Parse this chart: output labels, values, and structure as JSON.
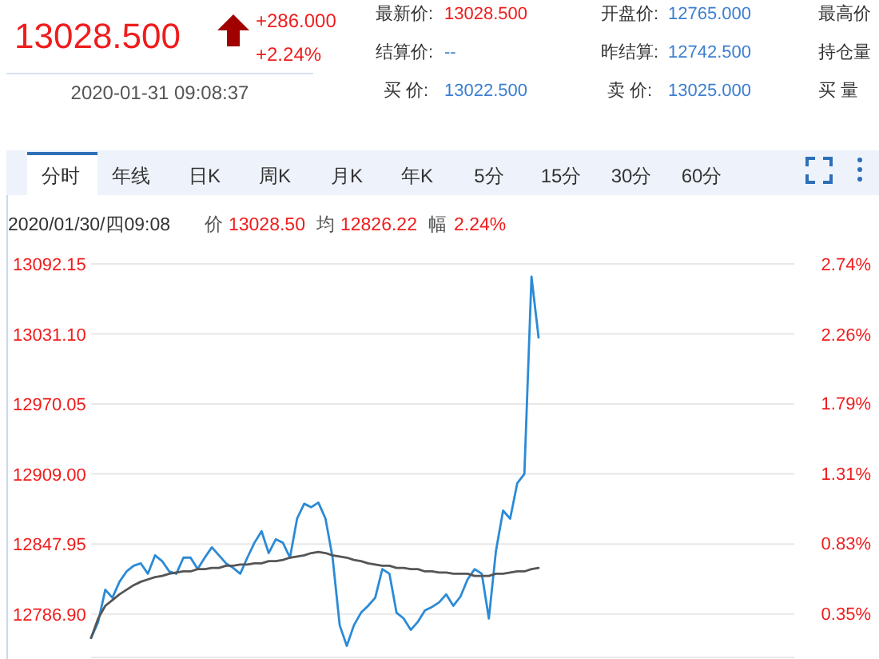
{
  "chart_data": {
    "type": "line",
    "categories": [
      null,
      null,
      null,
      null,
      null,
      null,
      null,
      null,
      null,
      null,
      null,
      null,
      null,
      null,
      null,
      null,
      null,
      null,
      null,
      null,
      null,
      null,
      null,
      null,
      null,
      null,
      null,
      null,
      null,
      null,
      null,
      null,
      null,
      null,
      null,
      null,
      null,
      null,
      null,
      null,
      null,
      null,
      null,
      null,
      null,
      null,
      null,
      null,
      null,
      null,
      null,
      null,
      null,
      null,
      null,
      null,
      null,
      null,
      null,
      null,
      null,
      null,
      null,
      null,
      null,
      null,
      null,
      null,
      null,
      null,
      null,
      null,
      null,
      null,
      null,
      null,
      null,
      null,
      null,
      null,
      null,
      null,
      null,
      null,
      null,
      null,
      null,
      null,
      null,
      null,
      null,
      null,
      null,
      null,
      null,
      null,
      null,
      null,
      null,
      null
    ],
    "series": [
      {
        "color": "#2b8ad6",
        "values": [
          12766,
          12780,
          12808,
          12801,
          12815,
          12824,
          12829,
          12831,
          12822,
          12838,
          12833,
          12824,
          12822,
          12836,
          12836,
          12826,
          12836,
          12845,
          12838,
          12831,
          12827,
          12822,
          12836,
          12849,
          12859,
          12840,
          12852,
          12849,
          12836,
          12870,
          12883,
          12880,
          12884,
          12870,
          12836,
          12777,
          12759,
          12777,
          12788,
          12794,
          12801,
          12826,
          12822,
          12788,
          12783,
          12773,
          12780,
          12790,
          12793,
          12797,
          12804,
          12794,
          12802,
          12817,
          12826,
          12822,
          12783,
          12842,
          12877,
          12870,
          12901,
          12909,
          13081,
          13028,
          null,
          null,
          null,
          null,
          null,
          null,
          null,
          null,
          null,
          null,
          null,
          null,
          null,
          null,
          null,
          null,
          null,
          null,
          null,
          null,
          null,
          null,
          null,
          null,
          null,
          null,
          null,
          null,
          null,
          null,
          null,
          null,
          null,
          null,
          null,
          null
        ]
      },
      {
        "color": "#555555",
        "values": [
          12766,
          12783,
          12794,
          12799,
          12804,
          12808,
          12812,
          12815,
          12817,
          12819,
          12820,
          12822,
          12823,
          12824,
          12824,
          12826,
          12826,
          12827,
          12827,
          12829,
          12829,
          12830,
          12830,
          12831,
          12831,
          12833,
          12833,
          12834,
          12836,
          12837,
          12838,
          12840,
          12841,
          12840,
          12838,
          12837,
          12836,
          12834,
          12833,
          12831,
          12830,
          12829,
          12829,
          12827,
          12827,
          12826,
          12826,
          12824,
          12824,
          12823,
          12823,
          12822,
          12822,
          12822,
          12820,
          12820,
          12820,
          12822,
          12822,
          12823,
          12824,
          12824,
          12826,
          12827,
          null,
          null,
          null,
          null,
          null,
          null,
          null,
          null,
          null,
          null,
          null,
          null,
          null,
          null,
          null,
          null,
          null,
          null,
          null,
          null,
          null,
          null,
          null,
          null,
          null,
          null,
          null,
          null,
          null,
          null,
          null,
          null,
          null,
          null,
          null,
          null
        ]
      }
    ],
    "ylim": [
      12749,
      13092.15
    ],
    "yticks": [
      {
        "value": 12786.9,
        "label": "12786.90"
      },
      {
        "value": 12847.95,
        "label": "12847.95"
      },
      {
        "value": 12909.0,
        "label": "12909.00"
      },
      {
        "value": 12970.05,
        "label": "12970.05"
      },
      {
        "value": 13031.1,
        "label": "13031.10"
      },
      {
        "value": 13092.15,
        "label": "13092.15"
      }
    ],
    "y2lim": [
      0.05,
      2.74
    ],
    "y2ticks": [
      {
        "value": 0.35,
        "label": "0.35%"
      },
      {
        "value": 0.83,
        "label": "0.83%"
      },
      {
        "value": 1.31,
        "label": "1.31%"
      },
      {
        "value": 1.79,
        "label": "1.79%"
      },
      {
        "value": 2.26,
        "label": "2.26%"
      },
      {
        "value": 2.74,
        "label": "2.74%"
      }
    ],
    "grid": "y",
    "tick_labels": "y",
    "annotations": [
      "13028.500",
      "+286.000",
      "+2.24%",
      "2020-01-31 09:08:37",
      "最新价:",
      "13028.500",
      "开盘价:",
      "12765.000",
      "最高价",
      "结算价:",
      "--",
      "昨结算:",
      "12742.500",
      "持仓量",
      "买  价:",
      "13022.500",
      "卖  价:",
      "13025.000",
      "买  量",
      "分时",
      "年线",
      "日K",
      "周K",
      "月K",
      "年K",
      "5分",
      "15分",
      "30分",
      "60分",
      "2020/01/30/四09:08",
      "价",
      "13028.50",
      "均",
      "12826.22",
      "幅",
      "2.24%"
    ]
  }
}
